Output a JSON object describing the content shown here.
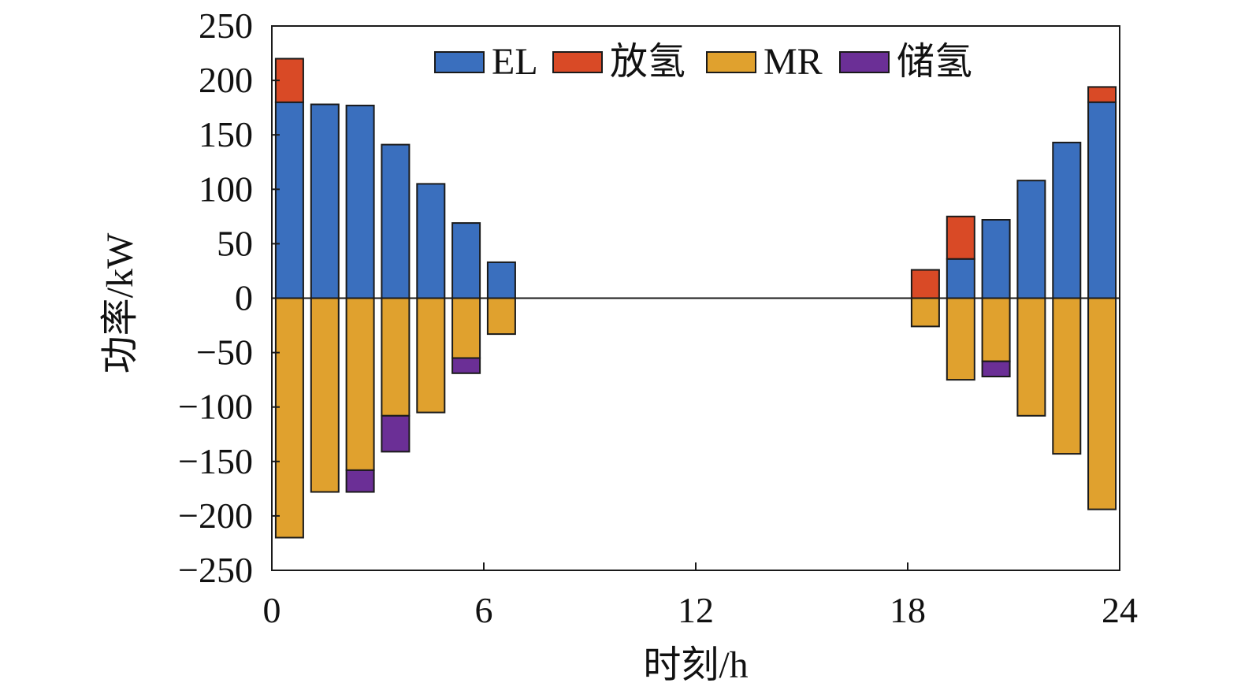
{
  "chart_data": {
    "type": "bar",
    "stacked": true,
    "xlabel": "时刻/h",
    "ylabel": "功率/kW",
    "xlim": [
      0,
      24
    ],
    "ylim": [
      -250,
      250
    ],
    "xticks": [
      0,
      6,
      12,
      18,
      24
    ],
    "yticks": [
      250,
      200,
      150,
      100,
      50,
      0,
      -50,
      -100,
      -150,
      -200,
      -250
    ],
    "ytick_labels": [
      "250",
      "200",
      "150",
      "100",
      "50",
      "0",
      "−50",
      "−100",
      "−150",
      "−200",
      "−250"
    ],
    "grid": false,
    "legend_position": "top",
    "x": [
      1,
      2,
      3,
      4,
      5,
      6,
      7,
      19,
      20,
      21,
      22,
      23,
      24
    ],
    "series": [
      {
        "name": "EL",
        "color": "#3a6fbe",
        "values": [
          180,
          178,
          177,
          141,
          105,
          69,
          33,
          0,
          36,
          72,
          108,
          143,
          180
        ]
      },
      {
        "name": "放氢",
        "color": "#d94a26",
        "values": [
          40,
          0,
          0,
          0,
          0,
          0,
          0,
          26,
          39,
          0,
          0,
          0,
          14
        ]
      },
      {
        "name": "MR",
        "color": "#e0a12e",
        "values": [
          -220,
          -178,
          -158,
          -108,
          -105,
          -55,
          -33,
          -26,
          -75,
          -58,
          -108,
          -143,
          -194
        ]
      },
      {
        "name": "储氢",
        "color": "#6b2f96",
        "values": [
          0,
          0,
          -20,
          -33,
          0,
          -14,
          0,
          0,
          0,
          -14,
          0,
          0,
          0
        ]
      }
    ]
  }
}
